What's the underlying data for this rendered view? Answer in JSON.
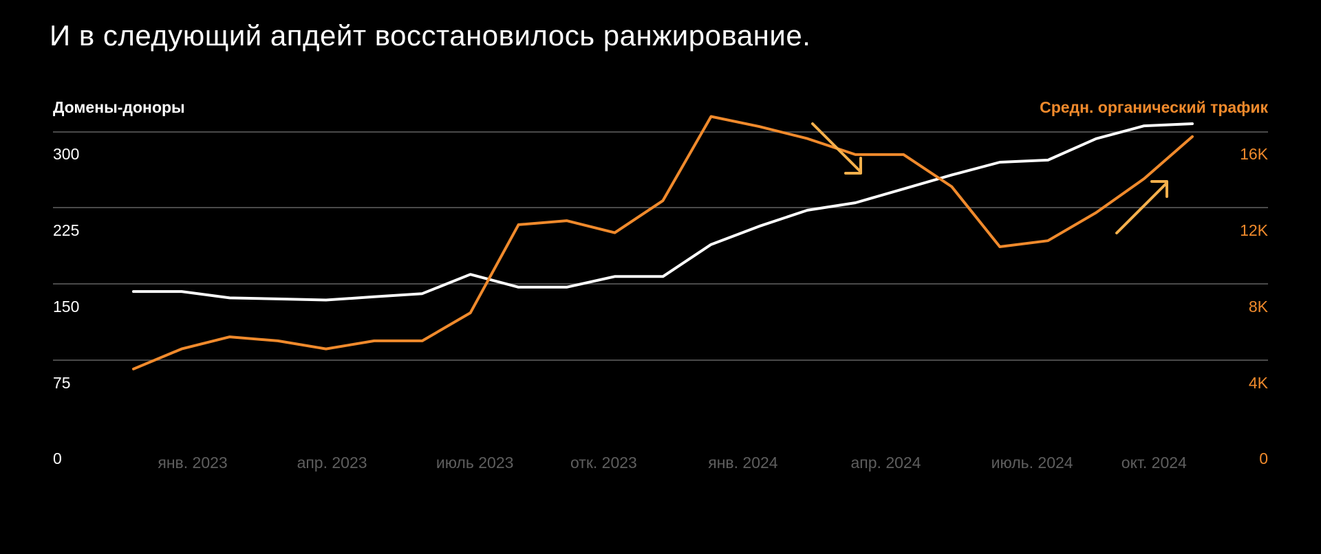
{
  "title": "И в следующий апдейт восстановилось ранжирование.",
  "colors": {
    "background": "#000000",
    "donors_line": "#ffffff",
    "traffic_line": "#f08a2c",
    "annotation_arrow": "#f5b04c",
    "gridline": "#4a4a4a",
    "x_tick_text": "#5e5e5e"
  },
  "chart_data": {
    "type": "line",
    "grid": true,
    "legend": "none",
    "left_axis": {
      "label": "Домены-доноры",
      "ticks": [
        "0",
        "75",
        "150",
        "225",
        "300"
      ],
      "range": [
        0,
        312
      ]
    },
    "right_axis": {
      "label": "Средн. органический трафик",
      "ticks": [
        "0",
        "4K",
        "8K",
        "12K",
        "16K"
      ],
      "range": [
        0,
        16640
      ]
    },
    "x_ticks": [
      "янв. 2023",
      "апр. 2023",
      "июль 2023",
      "отк. 2023",
      "янв. 2024",
      "апр. 2024",
      "июль. 2024",
      "окт. 2024"
    ],
    "x_tick_positions": [
      0.85,
      2.85,
      4.9,
      6.75,
      8.75,
      10.8,
      12.9,
      14.65
    ],
    "x_range": [
      0,
      15.2
    ],
    "x_count": 23,
    "series": [
      {
        "axis": "left",
        "color": "#ffffff",
        "values": [
          155,
          155,
          149,
          148,
          147,
          150,
          153,
          171,
          159,
          159,
          169,
          169,
          199,
          216,
          231,
          238,
          251,
          264,
          276,
          278,
          298,
          310,
          312
        ]
      },
      {
        "axis": "right",
        "color": "#f08a2c",
        "values": [
          4400,
          5400,
          6000,
          5800,
          5400,
          5800,
          5800,
          7200,
          11600,
          11800,
          11200,
          12800,
          17000,
          16500,
          15900,
          15100,
          15100,
          13500,
          10500,
          10800,
          12200,
          13900,
          16000
        ]
      }
    ],
    "annotations": [
      "arrow-down-right",
      "arrow-up-right"
    ]
  }
}
